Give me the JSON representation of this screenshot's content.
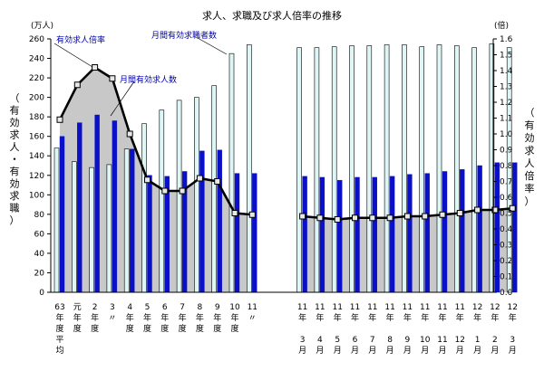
{
  "chart_data": {
    "type": "bar",
    "title": "求人、求職及び求人倍率の推移",
    "y_left_unit": "(万人)",
    "y_right_unit": "(倍)",
    "y_left_label": [
      "（",
      "有",
      "効",
      "求",
      "人",
      "・",
      "有",
      "効",
      "求",
      "職",
      "）"
    ],
    "y_right_label": [
      "（",
      "有",
      "効",
      "求",
      "人",
      "倍",
      "率",
      "）"
    ],
    "y_left_range": [
      0,
      260
    ],
    "y_left_ticks": [
      "0",
      "20",
      "40",
      "60",
      "80",
      "100",
      "120",
      "140",
      "160",
      "180",
      "200",
      "220",
      "240",
      "260"
    ],
    "y_right_range": [
      0,
      1.6
    ],
    "y_right_ticks": [
      "0.0",
      "0.1",
      "0.2",
      "0.3",
      "0.4",
      "0.5",
      "0.6",
      "0.7",
      "0.8",
      "0.9",
      "1.0",
      "1.1",
      "1.2",
      "1.3",
      "1.4",
      "1.5",
      "1.6"
    ],
    "annotations": {
      "ratio": "有効求人倍率",
      "jobs": "月間有効求人数",
      "seekers": "月間有効求職者数"
    },
    "categories": [
      [
        "63",
        "年",
        "度",
        "平",
        "均"
      ],
      [
        "元",
        "年",
        "度"
      ],
      [
        "2",
        "年",
        "度"
      ],
      [
        "3",
        "〃"
      ],
      [
        "4",
        "年",
        "度"
      ],
      [
        "5",
        "年",
        "度"
      ],
      [
        "6",
        "年",
        "度"
      ],
      [
        "7",
        "年",
        "度"
      ],
      [
        "8",
        "年",
        "度"
      ],
      [
        "9",
        "年",
        "度"
      ],
      [
        "10",
        "年",
        "度"
      ],
      [
        "11",
        "〃"
      ],
      [
        "11",
        "年",
        "",
        "3",
        "月"
      ],
      [
        "11",
        "年",
        "",
        "4",
        "月"
      ],
      [
        "11",
        "年",
        "",
        "5",
        "月"
      ],
      [
        "11",
        "年",
        "",
        "6",
        "月"
      ],
      [
        "11",
        "年",
        "",
        "7",
        "月"
      ],
      [
        "11",
        "年",
        "",
        "8",
        "月"
      ],
      [
        "11",
        "年",
        "",
        "9",
        "月"
      ],
      [
        "11",
        "年",
        "",
        "10",
        "月"
      ],
      [
        "11",
        "年",
        "",
        "11",
        "月"
      ],
      [
        "11",
        "年",
        "",
        "12",
        "月"
      ],
      [
        "12",
        "年",
        "",
        "1",
        "月"
      ],
      [
        "12",
        "年",
        "",
        "2",
        "月"
      ],
      [
        "12",
        "年",
        "",
        "3",
        "月"
      ]
    ],
    "series": [
      {
        "name": "月間有効求職者数",
        "axis": "left",
        "values": [
          148,
          134,
          128,
          131,
          147,
          173,
          187,
          197,
          200,
          212,
          245,
          254,
          251,
          251,
          252,
          253,
          253,
          254,
          254,
          252,
          254,
          253,
          251,
          255,
          251
        ]
      },
      {
        "name": "月間有効求人数",
        "axis": "left",
        "values": [
          160,
          174,
          182,
          176,
          147,
          120,
          119,
          124,
          145,
          146,
          122,
          122,
          119,
          118,
          115,
          118,
          118,
          119,
          121,
          122,
          124,
          126,
          130,
          133,
          133
        ]
      },
      {
        "name": "有効求人倍率",
        "axis": "right",
        "values": [
          1.09,
          1.31,
          1.42,
          1.35,
          1.0,
          0.71,
          0.64,
          0.64,
          0.72,
          0.7,
          0.5,
          0.49,
          0.48,
          0.47,
          0.46,
          0.47,
          0.47,
          0.47,
          0.48,
          0.48,
          0.49,
          0.5,
          0.52,
          0.52,
          0.53
        ]
      }
    ],
    "colors": {
      "seekers_bar": "#dff6f6",
      "jobs_bar": "#0a10c8",
      "ratio_area": "#c8c8c8",
      "ratio_line": "#000000",
      "ratio_marker_fill": "#e8e8e8",
      "annotation_text": "#0000aa"
    }
  }
}
